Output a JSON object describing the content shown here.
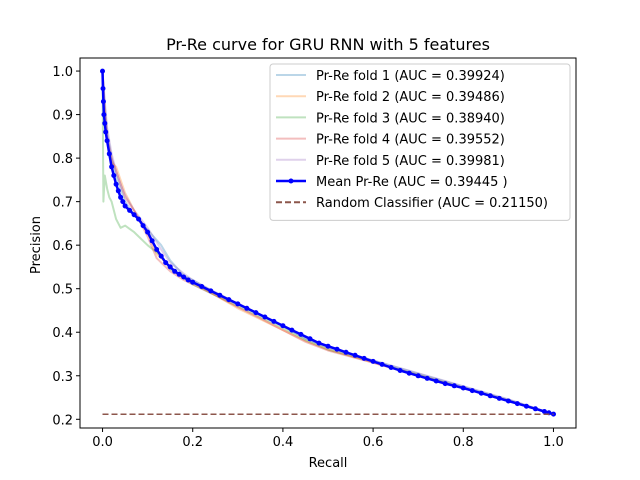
{
  "chart_data": {
    "type": "line",
    "title": "Pr-Re curve for GRU RNN with 5 features",
    "xlabel": "Recall",
    "ylabel": "Precision",
    "xlim": [
      -0.05,
      1.05
    ],
    "ylim": [
      0.18,
      1.03
    ],
    "xticks": [
      0.0,
      0.2,
      0.4,
      0.6,
      0.8,
      1.0
    ],
    "xtick_labels": [
      "0.0",
      "0.2",
      "0.4",
      "0.6",
      "0.8",
      "1.0"
    ],
    "yticks": [
      0.2,
      0.3,
      0.4,
      0.5,
      0.6,
      0.7,
      0.8,
      0.9,
      1.0
    ],
    "ytick_labels": [
      "0.2",
      "0.3",
      "0.4",
      "0.5",
      "0.6",
      "0.7",
      "0.8",
      "0.9",
      "1.0"
    ],
    "grid": false,
    "legend_position": "upper-right",
    "series": [
      {
        "name": "Pr-Re fold 1 (AUC = 0.39924)",
        "color": "#1f77b4",
        "opacity": 0.3,
        "style": "solid",
        "x": [
          0.0,
          0.005,
          0.01,
          0.02,
          0.03,
          0.04,
          0.05,
          0.07,
          0.1,
          0.13,
          0.15,
          0.18,
          0.2,
          0.25,
          0.3,
          0.35,
          0.4,
          0.45,
          0.5,
          0.6,
          0.7,
          0.8,
          0.9,
          1.0
        ],
        "y": [
          1.0,
          0.92,
          0.86,
          0.8,
          0.76,
          0.73,
          0.7,
          0.67,
          0.635,
          0.6,
          0.565,
          0.53,
          0.52,
          0.49,
          0.465,
          0.44,
          0.415,
          0.385,
          0.365,
          0.335,
          0.305,
          0.275,
          0.245,
          0.212
        ]
      },
      {
        "name": "Pr-Re fold 2 (AUC = 0.39486)",
        "color": "#ff7f0e",
        "opacity": 0.3,
        "style": "solid",
        "x": [
          0.0,
          0.005,
          0.01,
          0.02,
          0.03,
          0.04,
          0.05,
          0.07,
          0.1,
          0.12,
          0.15,
          0.18,
          0.2,
          0.25,
          0.3,
          0.35,
          0.4,
          0.45,
          0.5,
          0.6,
          0.7,
          0.8,
          0.9,
          1.0
        ],
        "y": [
          1.0,
          0.9,
          0.84,
          0.79,
          0.78,
          0.75,
          0.72,
          0.68,
          0.63,
          0.58,
          0.55,
          0.525,
          0.515,
          0.485,
          0.455,
          0.43,
          0.405,
          0.38,
          0.36,
          0.33,
          0.302,
          0.272,
          0.243,
          0.212
        ]
      },
      {
        "name": "Pr-Re fold 3 (AUC = 0.38940)",
        "color": "#2ca02c",
        "opacity": 0.3,
        "style": "solid",
        "x": [
          0.0,
          0.002,
          0.005,
          0.01,
          0.015,
          0.02,
          0.03,
          0.04,
          0.05,
          0.07,
          0.1,
          0.13,
          0.15,
          0.18,
          0.2,
          0.25,
          0.3,
          0.35,
          0.4,
          0.45,
          0.5,
          0.6,
          0.7,
          0.8,
          0.9,
          1.0
        ],
        "y": [
          1.0,
          0.7,
          0.76,
          0.73,
          0.71,
          0.7,
          0.66,
          0.64,
          0.645,
          0.63,
          0.6,
          0.575,
          0.545,
          0.525,
          0.51,
          0.485,
          0.46,
          0.435,
          0.41,
          0.382,
          0.36,
          0.332,
          0.302,
          0.272,
          0.243,
          0.212
        ]
      },
      {
        "name": "Pr-Re fold 4 (AUC = 0.39552)",
        "color": "#d62728",
        "opacity": 0.3,
        "style": "solid",
        "x": [
          0.0,
          0.005,
          0.01,
          0.02,
          0.03,
          0.04,
          0.05,
          0.07,
          0.1,
          0.12,
          0.15,
          0.18,
          0.2,
          0.25,
          0.3,
          0.35,
          0.4,
          0.45,
          0.5,
          0.6,
          0.7,
          0.8,
          0.9,
          1.0
        ],
        "y": [
          1.0,
          0.91,
          0.85,
          0.8,
          0.77,
          0.74,
          0.71,
          0.68,
          0.62,
          0.57,
          0.54,
          0.52,
          0.51,
          0.485,
          0.458,
          0.432,
          0.405,
          0.378,
          0.358,
          0.33,
          0.3,
          0.271,
          0.242,
          0.212
        ]
      },
      {
        "name": "Pr-Re fold 5 (AUC = 0.39981)",
        "color": "#9467bd",
        "opacity": 0.3,
        "style": "solid",
        "x": [
          0.0,
          0.005,
          0.01,
          0.02,
          0.03,
          0.04,
          0.05,
          0.07,
          0.1,
          0.13,
          0.15,
          0.18,
          0.2,
          0.25,
          0.3,
          0.35,
          0.4,
          0.45,
          0.5,
          0.6,
          0.7,
          0.8,
          0.9,
          1.0
        ],
        "y": [
          1.0,
          0.93,
          0.87,
          0.81,
          0.77,
          0.74,
          0.715,
          0.68,
          0.64,
          0.59,
          0.56,
          0.535,
          0.52,
          0.492,
          0.466,
          0.44,
          0.414,
          0.386,
          0.365,
          0.335,
          0.306,
          0.276,
          0.246,
          0.212
        ]
      },
      {
        "name": "Mean Pr-Re (AUC = 0.39445 )",
        "color": "#0000ff",
        "opacity": 1.0,
        "style": "solid-marker",
        "x": [
          0.0,
          0.001,
          0.002,
          0.003,
          0.005,
          0.007,
          0.01,
          0.015,
          0.02,
          0.025,
          0.03,
          0.035,
          0.04,
          0.045,
          0.05,
          0.06,
          0.07,
          0.08,
          0.09,
          0.1,
          0.11,
          0.12,
          0.13,
          0.14,
          0.15,
          0.16,
          0.17,
          0.18,
          0.19,
          0.2,
          0.22,
          0.24,
          0.26,
          0.28,
          0.3,
          0.32,
          0.34,
          0.36,
          0.38,
          0.4,
          0.42,
          0.44,
          0.46,
          0.48,
          0.5,
          0.52,
          0.54,
          0.56,
          0.58,
          0.6,
          0.62,
          0.64,
          0.66,
          0.68,
          0.7,
          0.72,
          0.74,
          0.76,
          0.78,
          0.8,
          0.82,
          0.84,
          0.86,
          0.88,
          0.9,
          0.92,
          0.94,
          0.96,
          0.98,
          0.99,
          1.0
        ],
        "y": [
          1.0,
          0.96,
          0.93,
          0.9,
          0.88,
          0.86,
          0.84,
          0.81,
          0.78,
          0.76,
          0.74,
          0.725,
          0.71,
          0.7,
          0.69,
          0.68,
          0.67,
          0.66,
          0.645,
          0.63,
          0.61,
          0.59,
          0.575,
          0.56,
          0.55,
          0.54,
          0.533,
          0.527,
          0.52,
          0.515,
          0.505,
          0.495,
          0.485,
          0.475,
          0.465,
          0.455,
          0.445,
          0.435,
          0.425,
          0.415,
          0.405,
          0.395,
          0.385,
          0.375,
          0.368,
          0.361,
          0.354,
          0.347,
          0.34,
          0.333,
          0.326,
          0.319,
          0.312,
          0.306,
          0.3,
          0.294,
          0.288,
          0.282,
          0.277,
          0.272,
          0.266,
          0.26,
          0.254,
          0.248,
          0.242,
          0.236,
          0.23,
          0.224,
          0.218,
          0.215,
          0.212
        ]
      },
      {
        "name": "Random Classifier (AUC = 0.21150)",
        "color": "#8c564b",
        "opacity": 1.0,
        "style": "dashed",
        "x": [
          0.0,
          1.0
        ],
        "y": [
          0.2115,
          0.2115
        ]
      }
    ]
  }
}
